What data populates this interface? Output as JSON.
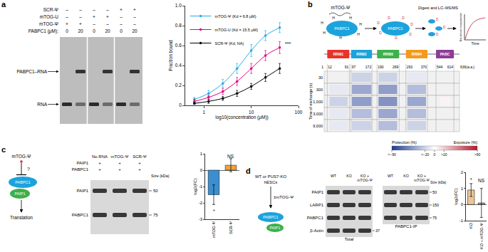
{
  "panel_labels": [
    "a",
    "b",
    "c",
    "d"
  ],
  "a": {
    "gel": {
      "rows": [
        {
          "label": "SCR-Ψ",
          "values": [
            "–",
            "–",
            "–",
            "–",
            "+",
            "+"
          ]
        },
        {
          "label": "mTOG-U",
          "values": [
            "–",
            "–",
            "+",
            "+",
            "–",
            "–"
          ]
        },
        {
          "label": "mTOG-Ψ",
          "values": [
            "+",
            "+",
            "–",
            "–",
            "–",
            "–"
          ]
        },
        {
          "label": "PABPC1 (μM):",
          "values": [
            0,
            20,
            0,
            20,
            0,
            20
          ]
        }
      ],
      "band_labels": [
        "PABPC1–RNA",
        "RNA"
      ]
    }
  },
  "b": {
    "schematic": {
      "ligand": "mTOG-Ψ",
      "protein": "PABPC1",
      "step": "Digest and LC–MS/MS",
      "plot_y": "Deuterium incorporation",
      "plot_x": "Time",
      "h": "H",
      "d": "D"
    },
    "domains": [
      {
        "name": "RRM1",
        "start": 12,
        "end": 91,
        "color": "#e8332a"
      },
      {
        "name": "RRM2",
        "start": 97,
        "end": 172,
        "color": "#1ba3dc"
      },
      {
        "name": "RRM3",
        "start": 190,
        "end": 269,
        "color": "#3cb24a"
      },
      {
        "name": "RRM4",
        "start": 293,
        "end": 370,
        "color": "#f39a1d"
      },
      {
        "name": "PABC",
        "start": 544,
        "end": 614,
        "color": "#8e3c96"
      }
    ],
    "residues": [
      1,
      12,
      91,
      97,
      172,
      190,
      269,
      293,
      370,
      544,
      614,
      {
        "value": 636,
        "label": "636(a.a.)"
      }
    ],
    "hdx": {
      "axis_label": "Time of exchange (s)",
      "times": [
        30,
        300,
        {
          "value": 1000,
          "label": "1,000"
        },
        {
          "value": 3000,
          "label": "3,000"
        },
        {
          "value": 9000,
          "label": "9,000"
        }
      ],
      "regions": [
        {
          "start": 20,
          "end": 85,
          "values": [
            0,
            -10,
            -20,
            -10,
            -10
          ]
        },
        {
          "start": 100,
          "end": 170,
          "values": [
            -20,
            -40,
            -45,
            -30,
            -20
          ]
        },
        {
          "start": 195,
          "end": 262,
          "values": [
            -20,
            -45,
            -50,
            -40,
            -30
          ]
        },
        {
          "start": 298,
          "end": 365,
          "values": [
            -10,
            -30,
            -40,
            -30,
            -20
          ]
        },
        {
          "start": 560,
          "end": 600,
          "values": [
            0,
            0,
            5,
            0,
            0
          ]
        }
      ],
      "scale": {
        "protection_label": "Protection (%)",
        "exposure_label": "Exposure (%)",
        "ticks": [
          {
            "value": -90,
            "label": "<−90"
          },
          {
            "value": -20,
            "label": "<−20"
          },
          0,
          {
            "value": 20,
            "label": ">20"
          },
          {
            "value": 90,
            "label": ">90"
          }
        ]
      }
    }
  },
  "c": {
    "schematic": {
      "ligand": "mTOG-Ψ",
      "query": "?",
      "proteins": [
        "PABPC1",
        "PAIP1"
      ],
      "outcome": "Translation"
    },
    "blot": {
      "columns": [
        "No RNA",
        "mTOG-Ψ",
        "SCR-Ψ"
      ],
      "rows": [
        {
          "label": "PAIP1",
          "values": [
            "+",
            "+",
            "+"
          ]
        },
        {
          "label": "PABPC1",
          "values": [
            "+",
            "+",
            "+"
          ]
        }
      ],
      "bands": [
        {
          "label": "PAIP1",
          "size": 50
        },
        {
          "label": "PABPC1",
          "size": 75
        }
      ],
      "size_label": "Size (kDa)"
    }
  },
  "d": {
    "schematic": {
      "source": [
        "WT or PUS7-KO",
        "hESCs"
      ],
      "treatment": "±mTOG-Ψ",
      "proteins": [
        "PABPC1",
        "PAIP1"
      ]
    },
    "blot": {
      "columns": [
        [
          "WT"
        ],
        [
          "KO"
        ],
        [
          "KO +",
          "mTOG-Ψ"
        ]
      ],
      "groups": [
        "Total",
        "PABPC1-IP"
      ],
      "rows": [
        {
          "label": "PAIP1",
          "size": 50,
          "in_ip": true
        },
        {
          "label": "LARP1",
          "size": 150,
          "in_ip": true
        },
        {
          "label": "PABPC1",
          "size": 75,
          "in_ip": true
        },
        {
          "label": "β-Actin",
          "size": 37,
          "in_ip": false
        }
      ],
      "size_label": "Size (kDa)"
    }
  },
  "chart_data": [
    {
      "type": "line",
      "log": "x",
      "grid": false,
      "legend": "upper left",
      "marker": "circle",
      "x_label": "log10(concentration (μM))",
      "y_label": "Fraction bound",
      "x": [
        0.625,
        1.25,
        2.5,
        5,
        10,
        20,
        40
      ],
      "xlim": [
        0.4,
        100
      ],
      "xticks": [
        1,
        10,
        100
      ],
      "ylim": [
        0,
        1
      ],
      "yticks": [
        0,
        0.2,
        0.4,
        0.6,
        0.8,
        {
          "value": 1,
          "label": "1.0"
        }
      ],
      "series": [
        {
          "name": "mTOG-Ψ (Kd = 6.8 μM)",
          "color": "#29abe2",
          "values": [
            0.06,
            0.12,
            0.22,
            0.37,
            0.55,
            0.7,
            0.78
          ],
          "errors": [
            0.02,
            0.03,
            0.04,
            0.05,
            0.06,
            0.05,
            0.05
          ]
        },
        {
          "name": "mTOG-U (Kd = 15.5 μM)",
          "color": "#e6007e",
          "values": [
            0.04,
            0.08,
            0.14,
            0.24,
            0.37,
            0.5,
            0.58
          ],
          "errors": [
            0.02,
            0.02,
            0.03,
            0.04,
            0.05,
            0.05,
            0.06
          ]
        },
        {
          "name": "SCR-Ψ (Kd, NA)",
          "color": "#000000",
          "values": [
            0.02,
            0.04,
            0.07,
            0.12,
            0.19,
            0.28,
            0.37
          ],
          "errors": [
            0.01,
            0.02,
            0.02,
            0.03,
            0.03,
            0.04,
            0.05
          ]
        }
      ],
      "annotations": [
        {
          "text": "***",
          "x": 60,
          "y": 0.62
        }
      ]
    },
    {
      "type": "bar",
      "grid": false,
      "y_label": "log2(FC)",
      "categories": [
        "mTOG-Ψ",
        "SCR-Ψ"
      ],
      "values": [
        -1.5,
        0.3
      ],
      "errors": [
        0.6,
        0.4
      ],
      "colors": [
        "#3b8fd0",
        "#f2a33a"
      ],
      "ylim": [
        -3,
        1
      ],
      "yticks": [
        -3,
        -2,
        -1,
        0,
        1
      ],
      "annotations": [
        {
          "text": "*",
          "x": 0,
          "y": -2.5
        },
        {
          "text": "NS",
          "x": 1,
          "y": 0.85
        }
      ]
    },
    {
      "type": "bar",
      "grid": false,
      "y_label": "log2(FC)",
      "categories": [
        "KO",
        "KO + mTOG-Ψ"
      ],
      "values": [
        0.9,
        0.1
      ],
      "errors": [
        0.4,
        0.9
      ],
      "colors": [
        "#e8c69a",
        "#9e9e9e"
      ],
      "ylim": [
        -1,
        2
      ],
      "yticks": [
        -1,
        0,
        1,
        2
      ],
      "annotations": [
        {
          "text": "*",
          "x": 0,
          "y": 1.55
        },
        {
          "text": "NS",
          "x": 1,
          "y": 1.5
        }
      ]
    }
  ]
}
